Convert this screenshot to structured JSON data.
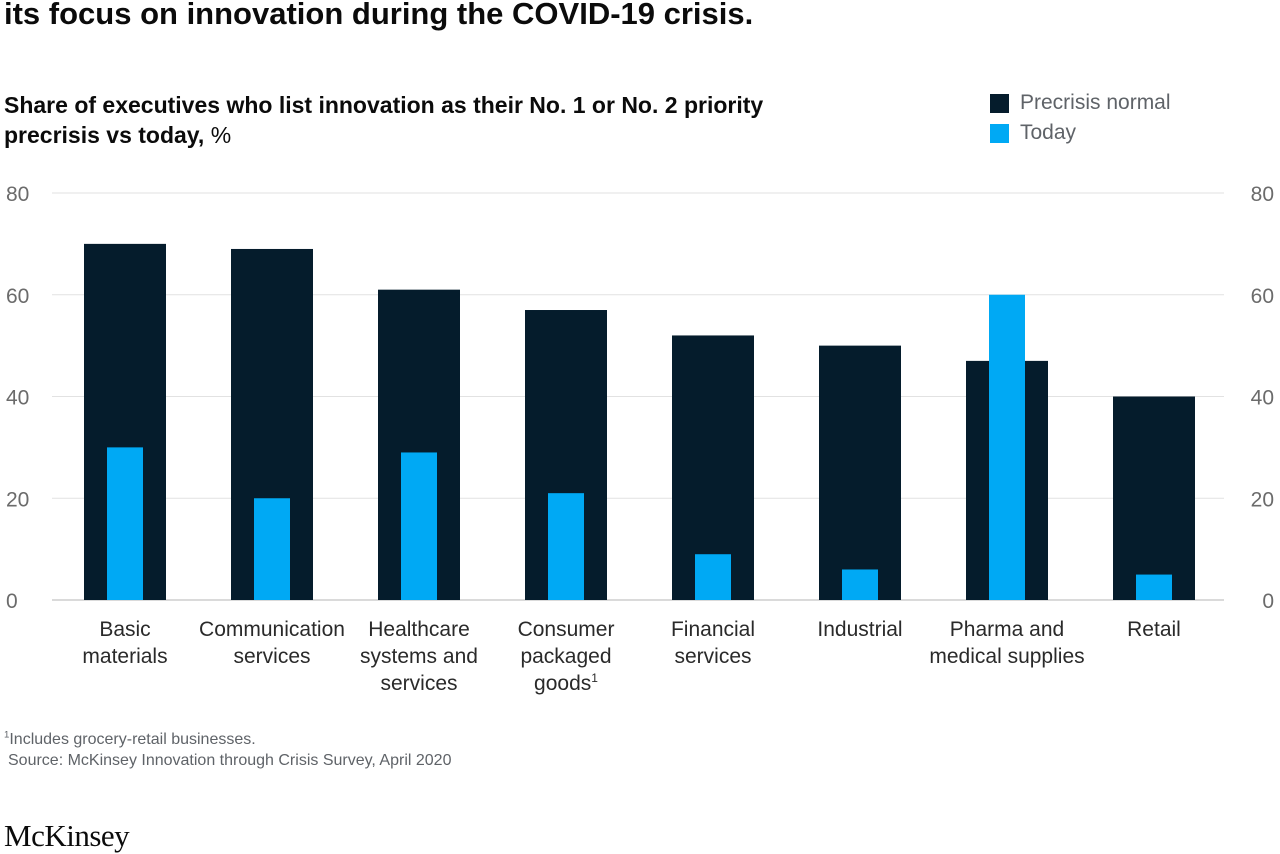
{
  "headline": "its focus on innovation during the COVID-19 crisis.",
  "subtitle": {
    "line1": "Share of executives who list innovation as their No. 1 or No. 2 priority",
    "line2": "precrisis vs today,",
    "unit": "%"
  },
  "legend": [
    {
      "label": "Precrisis normal",
      "color": "#051c2c"
    },
    {
      "label": "Today",
      "color": "#00a9f4"
    }
  ],
  "chart_data": {
    "type": "bar",
    "title": "Share of executives who list innovation as their No. 1 or No. 2 priority precrisis vs today, %",
    "xlabel": "",
    "ylabel": "%",
    "ylim": [
      0,
      80
    ],
    "yticks": [
      "0",
      "20",
      "40",
      "60",
      "80"
    ],
    "categories": [
      [
        "Basic",
        "materials"
      ],
      [
        "Communication",
        "services"
      ],
      [
        "Healthcare",
        "systems and",
        "services"
      ],
      [
        "Consumer",
        "packaged",
        "goods"
      ],
      [
        "Financial",
        "services"
      ],
      [
        "Industrial"
      ],
      [
        "Pharma and",
        "medical supplies"
      ],
      [
        "Retail"
      ]
    ],
    "category_note_ref": "1",
    "category_note_index": 3,
    "series": [
      {
        "name": "Precrisis normal",
        "color": "#051c2c",
        "values": [
          70,
          69,
          61,
          57,
          52,
          50,
          47,
          40
        ]
      },
      {
        "name": "Today",
        "color": "#00a9f4",
        "values": [
          30,
          20,
          29,
          21,
          9,
          6,
          60,
          5
        ]
      }
    ],
    "grid": true
  },
  "footnotes": {
    "note_ref": "1",
    "note": "Includes grocery-retail businesses.",
    "source": "Source: McKinsey Innovation through Crisis Survey, April 2020"
  },
  "brand": "McKinsey"
}
